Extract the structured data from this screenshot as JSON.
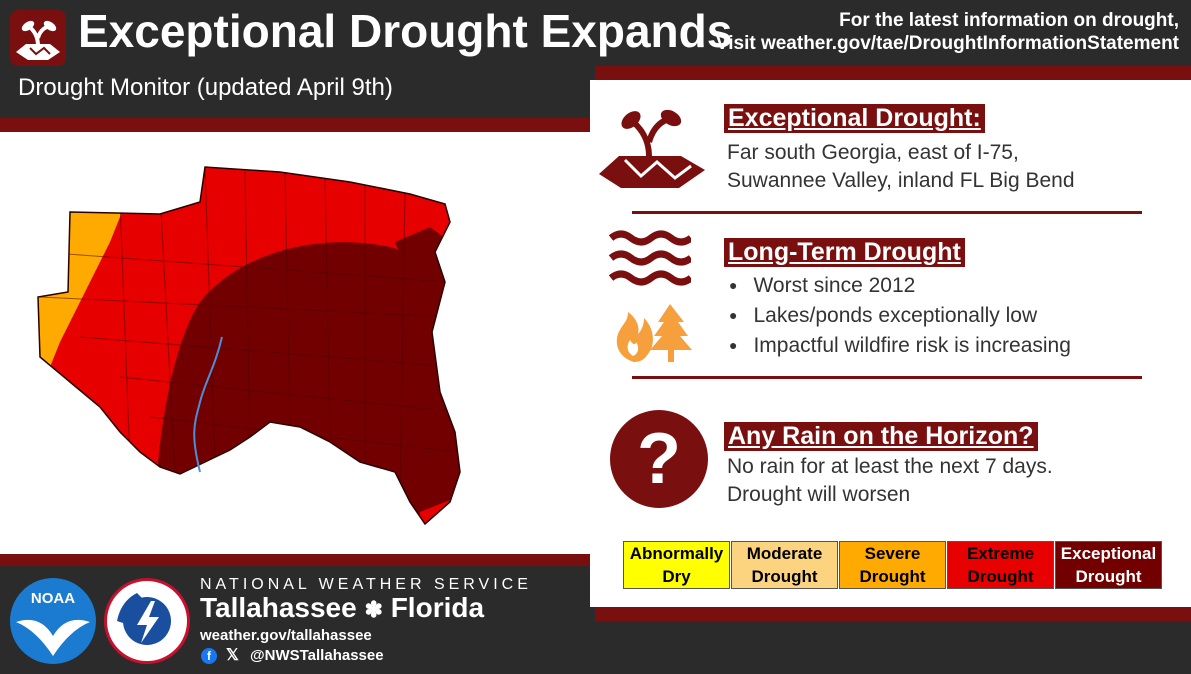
{
  "header": {
    "title": "Exceptional Drought Expands",
    "info_line1": "For the latest information on drought,",
    "info_prefix": "Visit ",
    "info_url": "weather.gov/tae/DroughtInformationStatement"
  },
  "subtitle": "Drought Monitor (updated April 9th)",
  "sections": {
    "exceptional": {
      "heading": "Exceptional Drought:",
      "line1": "Far south Georgia, east of I-75,",
      "line2": "Suwannee Valley, inland FL Big Bend"
    },
    "long_term": {
      "heading": "Long-Term Drought",
      "bullets": [
        "Worst since 2012",
        "Lakes/ponds exceptionally low",
        "Impactful wildfire risk is increasing"
      ]
    },
    "rain": {
      "heading": "Any Rain on the Horizon?",
      "line1": "No rain for at least the next 7 days.",
      "line2": "Drought will worsen",
      "question_mark": "?"
    }
  },
  "legend": [
    {
      "line1": "Abnormally",
      "line2": "Dry",
      "color": "#ffff00",
      "text_color": "#000000"
    },
    {
      "line1": "Moderate",
      "line2": "Drought",
      "color": "#fcd37f",
      "text_color": "#000000"
    },
    {
      "line1": "Severe",
      "line2": "Drought",
      "color": "#ffaa00",
      "text_color": "#000000"
    },
    {
      "line1": "Extreme",
      "line2": "Drought",
      "color": "#e60000",
      "text_color": "#000000"
    },
    {
      "line1": "Exceptional",
      "line2": "Drought",
      "color": "#730000",
      "text_color": "#ffffff"
    }
  ],
  "footer": {
    "agency": "NATIONAL WEATHER SERVICE",
    "office": "Tallahassee",
    "state": "Florida",
    "site": "weather.gov/tallahassee",
    "social": "@NWSTallahassee",
    "noaa_logo_text": "NOAA",
    "nws_logo_text": "NATIONAL WEATHER SERVICE"
  },
  "colors": {
    "accent": "#7a0f0f",
    "dark": "#2b2b2b",
    "icon_fire": "#f5a03c"
  }
}
